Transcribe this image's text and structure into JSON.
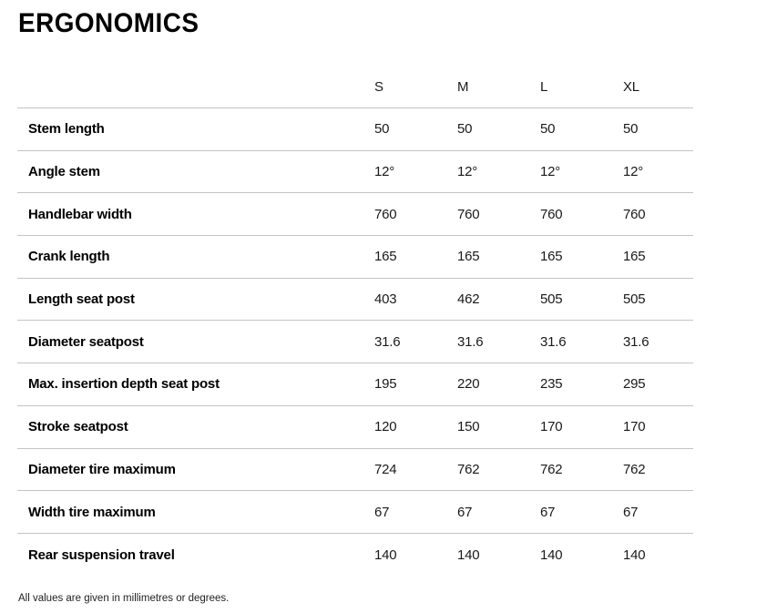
{
  "page": {
    "title": "ERGONOMICS",
    "footnote": "All values are given in millimetres or degrees.",
    "colors": {
      "text": "#000000",
      "value_text": "#1a1a1a",
      "border": "#c4c4c4",
      "background": "#ffffff"
    }
  },
  "table": {
    "columns": [
      "S",
      "M",
      "L",
      "XL"
    ],
    "rows": [
      {
        "label": "Stem length",
        "values": [
          "50",
          "50",
          "50",
          "50"
        ]
      },
      {
        "label": "Angle stem",
        "values": [
          "12°",
          "12°",
          "12°",
          "12°"
        ]
      },
      {
        "label": "Handlebar width",
        "values": [
          "760",
          "760",
          "760",
          "760"
        ]
      },
      {
        "label": "Crank length",
        "values": [
          "165",
          "165",
          "165",
          "165"
        ]
      },
      {
        "label": "Length seat post",
        "values": [
          "403",
          "462",
          "505",
          "505"
        ]
      },
      {
        "label": "Diameter seatpost",
        "values": [
          "31.6",
          "31.6",
          "31.6",
          "31.6"
        ]
      },
      {
        "label": "Max. insertion depth seat post",
        "values": [
          "195",
          "220",
          "235",
          "295"
        ]
      },
      {
        "label": "Stroke seatpost",
        "values": [
          "120",
          "150",
          "170",
          "170"
        ]
      },
      {
        "label": "Diameter tire maximum",
        "values": [
          "724",
          "762",
          "762",
          "762"
        ]
      },
      {
        "label": "Width tire maximum",
        "values": [
          "67",
          "67",
          "67",
          "67"
        ]
      },
      {
        "label": "Rear suspension travel",
        "values": [
          "140",
          "140",
          "140",
          "140"
        ]
      }
    ]
  }
}
